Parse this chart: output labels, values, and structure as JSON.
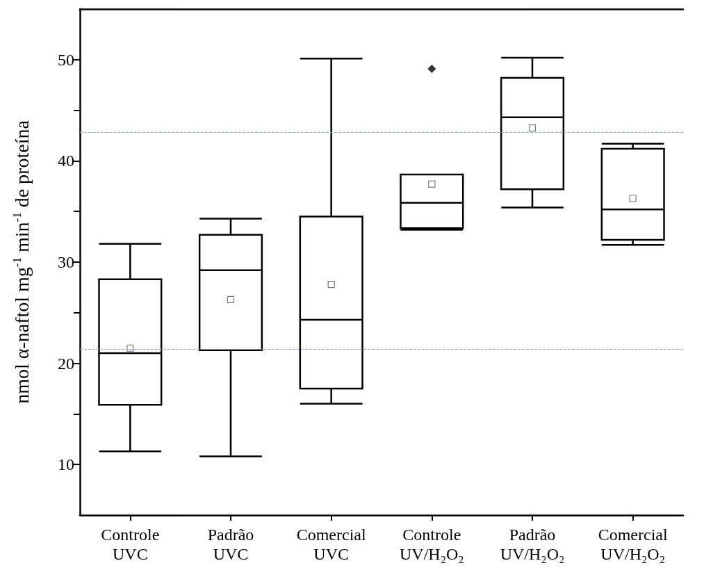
{
  "chart_data": {
    "type": "box",
    "ylabel": "nmol α-naftol mg$^{-1}$ min$^{-1}$ de proteína",
    "categories": [
      "Controle\nUVC",
      "Padrão\nUVC",
      "Comercial\nUVC",
      "Controle\nUV/H₂O₂",
      "Padrão\nUV/H₂O₂",
      "Comercial\nUV/H₂O₂"
    ],
    "boxes": [
      {
        "low": 11.3,
        "q1": 15.9,
        "median": 21.0,
        "q3": 28.3,
        "high": 31.8,
        "mean": 21.5
      },
      {
        "low": 10.8,
        "q1": 21.3,
        "median": 29.2,
        "q3": 32.7,
        "high": 34.3,
        "mean": 26.3
      },
      {
        "low": 16.0,
        "q1": 17.5,
        "median": 24.3,
        "q3": 34.5,
        "high": 50.1,
        "mean": 27.8
      },
      {
        "low": 33.2,
        "q1": 33.35,
        "median": 35.85,
        "q3": 38.65,
        "high": 38.65,
        "mean": 37.7,
        "outliers": [
          49.1
        ]
      },
      {
        "low": 35.4,
        "q1": 37.2,
        "median": 44.3,
        "q3": 48.2,
        "high": 50.2,
        "mean": 43.25
      },
      {
        "low": 31.7,
        "q1": 32.2,
        "median": 35.2,
        "q3": 41.2,
        "high": 41.7,
        "mean": 36.3
      }
    ],
    "color": "#000000",
    "ylim": [
      5,
      55
    ],
    "yticks": [
      10,
      {
        "value": 15,
        "label": null
      },
      20,
      {
        "value": 25,
        "label": null
      },
      30,
      {
        "value": 35,
        "label": null
      },
      40,
      {
        "value": 45,
        "label": null
      },
      50
    ],
    "ref_lines": [
      {
        "axis": "y",
        "value": 42.85,
        "color": "#8fa9c8",
        "line_style": "dashed"
      },
      {
        "axis": "y",
        "value": 21.4,
        "color": "#8fa9c8",
        "line_style": "dashed"
      }
    ],
    "grid": false
  }
}
